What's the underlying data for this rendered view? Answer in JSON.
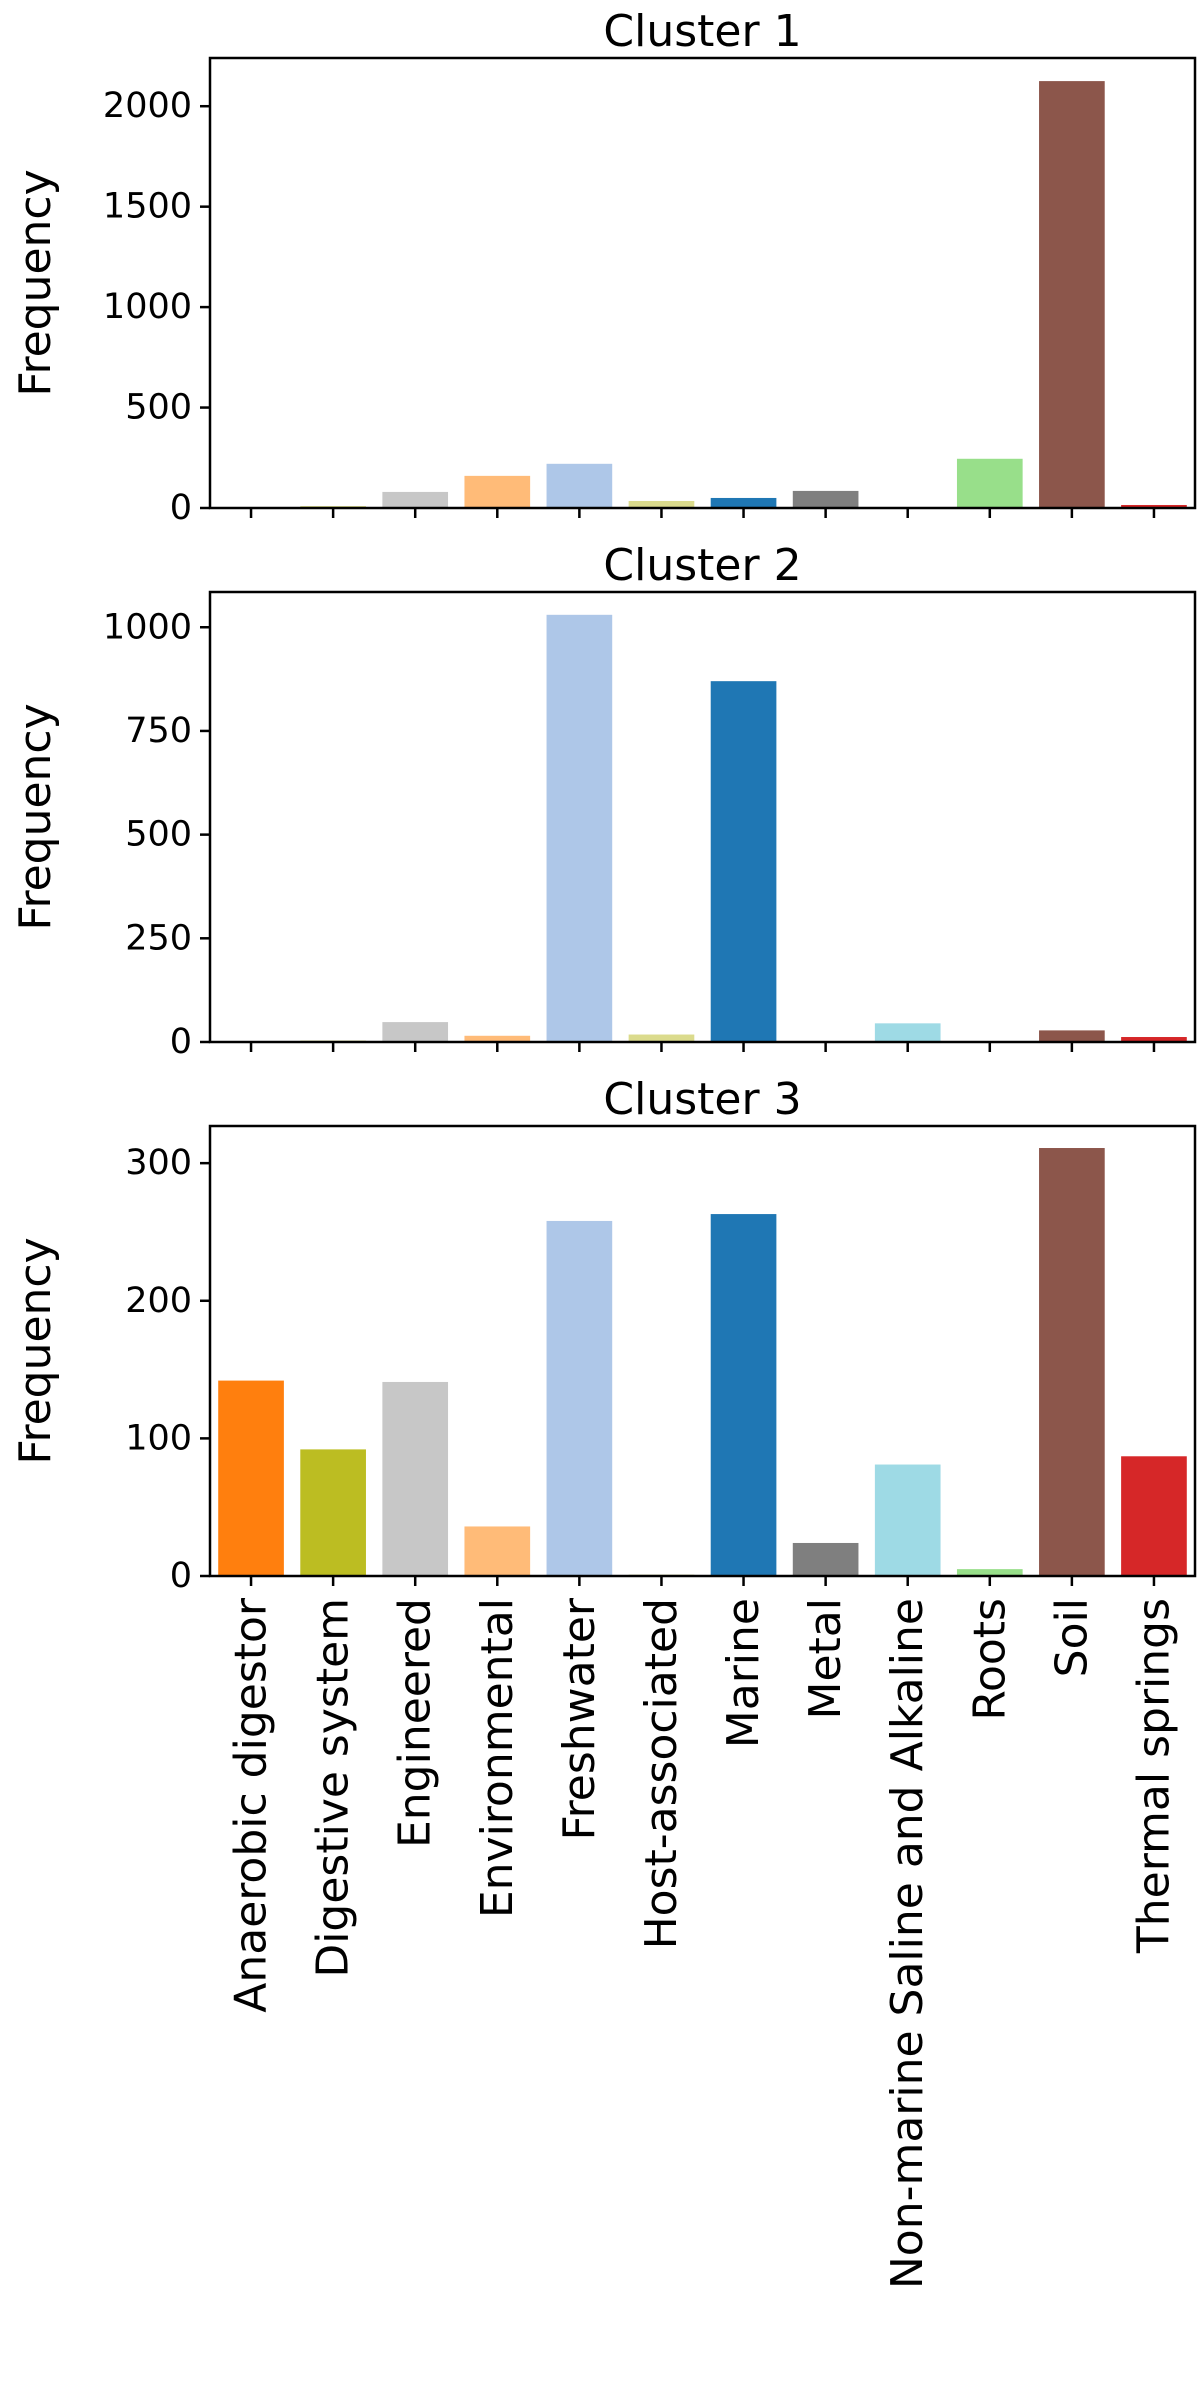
{
  "chart_data": {
    "type": "bar",
    "layout": "vertical-subplots-shared-x",
    "categories": [
      "Anaerobic digestor",
      "Digestive system",
      "Engineered",
      "Environmental",
      "Freshwater",
      "Host-associated",
      "Marine",
      "Metal",
      "Non-marine Saline and Alkaline",
      "Roots",
      "Soil",
      "Thermal springs"
    ],
    "category_colors": [
      "#ff7f0e",
      "#bcbd22",
      "#c7c7c7",
      "#ffbb78",
      "#aec7e8",
      "#dbdb8d",
      "#1f77b4",
      "#7f7f7f",
      "#9edae5",
      "#98df8a",
      "#8c564b",
      "#d62728"
    ],
    "grid": false,
    "legend": "none",
    "panels": [
      {
        "title": "Cluster 1",
        "ylabel": "Frequency",
        "ylim": [
          0,
          2240
        ],
        "yticks": [
          0,
          500,
          1000,
          1500,
          2000
        ],
        "values": [
          0,
          8,
          80,
          160,
          220,
          35,
          50,
          85,
          0,
          245,
          2125,
          15
        ]
      },
      {
        "title": "Cluster 2",
        "ylabel": "Frequency",
        "ylim": [
          0,
          1085
        ],
        "yticks": [
          0,
          250,
          500,
          750,
          1000
        ],
        "values": [
          0,
          3,
          48,
          15,
          1030,
          18,
          870,
          0,
          45,
          0,
          28,
          12
        ]
      },
      {
        "title": "Cluster 3",
        "ylabel": "Frequency",
        "ylim": [
          0,
          327
        ],
        "yticks": [
          0,
          100,
          200,
          300
        ],
        "values": [
          142,
          92,
          141,
          36,
          258,
          1,
          263,
          24,
          81,
          5,
          311,
          87
        ]
      }
    ]
  }
}
